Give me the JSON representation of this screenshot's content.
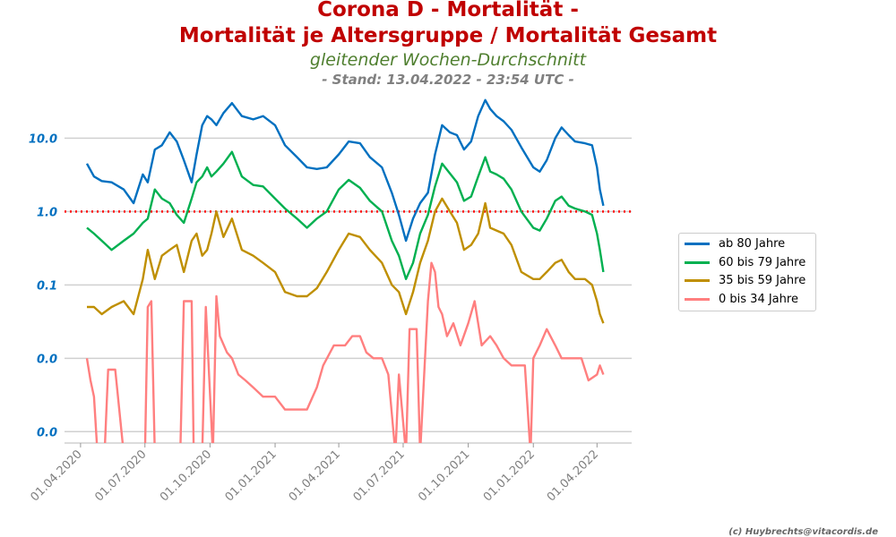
{
  "chart_data": {
    "type": "line",
    "title_line1": "Corona D - Mortalität -",
    "title_line2": "Mortalität je Altersgruppe / Mortalität Gesamt",
    "subtitle": "gleitender Wochen-Durchschnitt",
    "stand": "- Stand: 13.04.2022 - 23:54 UTC -",
    "credit": "(c) Huybrechts@vitacordis.de",
    "y_scale": "log",
    "y_tick_labels": [
      "10.0",
      "1.0",
      "0.1",
      "0.0",
      "0.0"
    ],
    "y_tick_values": [
      10,
      1,
      0.1,
      0.01,
      0.001
    ],
    "ylim": [
      0.0007,
      40
    ],
    "x_tick_labels": [
      "01.04.2020",
      "01.07.2020",
      "01.10.2020",
      "01.01.2021",
      "01.04.2021",
      "01.07.2021",
      "01.10.2021",
      "01.01.2022",
      "01.04.2022"
    ],
    "x_tick_values": [
      "2020-04-01",
      "2020-07-01",
      "2020-10-01",
      "2021-01-01",
      "2021-04-01",
      "2021-07-01",
      "2021-10-01",
      "2022-01-01",
      "2022-04-01"
    ],
    "xlim": [
      "2020-03-22",
      "2022-05-20"
    ],
    "reference_line": {
      "value": 1.0,
      "color": "#ff0000",
      "style": "dotted"
    },
    "grid": true,
    "legend_position": "right",
    "series": [
      {
        "name": "ab 80 Jahre",
        "color": "#0070c0",
        "x": [
          "2020-04-10",
          "2020-04-20",
          "2020-05-01",
          "2020-05-15",
          "2020-06-01",
          "2020-06-15",
          "2020-06-28",
          "2020-07-05",
          "2020-07-15",
          "2020-07-25",
          "2020-08-05",
          "2020-08-15",
          "2020-08-25",
          "2020-09-05",
          "2020-09-12",
          "2020-09-20",
          "2020-09-27",
          "2020-10-03",
          "2020-10-10",
          "2020-10-20",
          "2020-11-01",
          "2020-11-15",
          "2020-12-01",
          "2020-12-15",
          "2021-01-01",
          "2021-01-15",
          "2021-02-01",
          "2021-02-15",
          "2021-03-01",
          "2021-03-15",
          "2021-04-01",
          "2021-04-15",
          "2021-05-01",
          "2021-05-15",
          "2021-06-01",
          "2021-06-15",
          "2021-06-25",
          "2021-07-05",
          "2021-07-15",
          "2021-07-25",
          "2021-08-05",
          "2021-08-15",
          "2021-08-25",
          "2021-09-05",
          "2021-09-15",
          "2021-09-25",
          "2021-10-05",
          "2021-10-15",
          "2021-10-25",
          "2021-11-01",
          "2021-11-10",
          "2021-11-20",
          "2021-12-01",
          "2021-12-15",
          "2022-01-01",
          "2022-01-10",
          "2022-01-20",
          "2022-02-01",
          "2022-02-10",
          "2022-02-20",
          "2022-03-01",
          "2022-03-15",
          "2022-03-25",
          "2022-04-01",
          "2022-04-05",
          "2022-04-10"
        ],
        "values": [
          4.5,
          3.0,
          2.6,
          2.5,
          2.0,
          1.3,
          3.2,
          2.5,
          7.0,
          8.0,
          12.0,
          9.0,
          5.0,
          2.5,
          6.0,
          15.0,
          20.0,
          18.0,
          15.0,
          22.0,
          30.0,
          20.0,
          18.0,
          20.0,
          15.0,
          8.0,
          5.5,
          4.0,
          3.8,
          4.0,
          6.0,
          9.0,
          8.5,
          5.5,
          4.0,
          1.8,
          0.9,
          0.4,
          0.8,
          1.3,
          1.8,
          6.0,
          15.0,
          12.0,
          11.0,
          7.0,
          9.0,
          20.0,
          33.0,
          25.0,
          20.0,
          17.0,
          13.0,
          7.5,
          4.0,
          3.5,
          5.0,
          10.0,
          14.0,
          11.0,
          9.0,
          8.5,
          8.0,
          4.0,
          2.0,
          1.2
        ]
      },
      {
        "name": "60 bis 79 Jahre",
        "color": "#00b050",
        "x": [
          "2020-04-10",
          "2020-04-20",
          "2020-05-01",
          "2020-05-15",
          "2020-06-01",
          "2020-06-15",
          "2020-06-28",
          "2020-07-05",
          "2020-07-15",
          "2020-07-25",
          "2020-08-05",
          "2020-08-15",
          "2020-08-25",
          "2020-09-05",
          "2020-09-12",
          "2020-09-20",
          "2020-09-27",
          "2020-10-03",
          "2020-10-10",
          "2020-10-20",
          "2020-11-01",
          "2020-11-15",
          "2020-12-01",
          "2020-12-15",
          "2021-01-01",
          "2021-01-15",
          "2021-02-01",
          "2021-02-15",
          "2021-03-01",
          "2021-03-15",
          "2021-04-01",
          "2021-04-15",
          "2021-05-01",
          "2021-05-15",
          "2021-06-01",
          "2021-06-15",
          "2021-06-25",
          "2021-07-05",
          "2021-07-15",
          "2021-07-25",
          "2021-08-05",
          "2021-08-15",
          "2021-08-25",
          "2021-09-05",
          "2021-09-15",
          "2021-09-25",
          "2021-10-05",
          "2021-10-15",
          "2021-10-25",
          "2021-11-01",
          "2021-11-10",
          "2021-11-20",
          "2021-12-01",
          "2021-12-15",
          "2022-01-01",
          "2022-01-10",
          "2022-01-20",
          "2022-02-01",
          "2022-02-10",
          "2022-02-20",
          "2022-03-01",
          "2022-03-15",
          "2022-03-25",
          "2022-04-01",
          "2022-04-05",
          "2022-04-10"
        ],
        "values": [
          0.6,
          0.5,
          0.4,
          0.3,
          0.4,
          0.5,
          0.7,
          0.8,
          2.0,
          1.5,
          1.3,
          0.9,
          0.7,
          1.5,
          2.5,
          3.0,
          4.0,
          3.0,
          3.5,
          4.5,
          6.5,
          3.0,
          2.3,
          2.2,
          1.5,
          1.1,
          0.8,
          0.6,
          0.8,
          1.0,
          2.0,
          2.7,
          2.1,
          1.4,
          1.0,
          0.4,
          0.25,
          0.12,
          0.2,
          0.5,
          0.9,
          2.2,
          4.5,
          3.3,
          2.5,
          1.4,
          1.6,
          3.0,
          5.5,
          3.5,
          3.2,
          2.8,
          2.0,
          1.0,
          0.6,
          0.55,
          0.8,
          1.4,
          1.6,
          1.2,
          1.1,
          1.0,
          0.9,
          0.5,
          0.3,
          0.15
        ]
      },
      {
        "name": "35 bis 59 Jahre",
        "color": "#bf8f00",
        "x": [
          "2020-04-10",
          "2020-04-20",
          "2020-05-01",
          "2020-05-15",
          "2020-06-01",
          "2020-06-15",
          "2020-06-28",
          "2020-07-05",
          "2020-07-15",
          "2020-07-25",
          "2020-08-05",
          "2020-08-15",
          "2020-08-25",
          "2020-09-05",
          "2020-09-12",
          "2020-09-20",
          "2020-09-27",
          "2020-10-03",
          "2020-10-10",
          "2020-10-20",
          "2020-11-01",
          "2020-11-15",
          "2020-12-01",
          "2020-12-15",
          "2021-01-01",
          "2021-01-15",
          "2021-02-01",
          "2021-02-15",
          "2021-03-01",
          "2021-03-15",
          "2021-04-01",
          "2021-04-15",
          "2021-05-01",
          "2021-05-15",
          "2021-06-01",
          "2021-06-15",
          "2021-06-25",
          "2021-07-05",
          "2021-07-15",
          "2021-07-25",
          "2021-08-05",
          "2021-08-15",
          "2021-08-25",
          "2021-09-05",
          "2021-09-15",
          "2021-09-25",
          "2021-10-05",
          "2021-10-15",
          "2021-10-25",
          "2021-11-01",
          "2021-11-10",
          "2021-11-20",
          "2021-12-01",
          "2021-12-15",
          "2022-01-01",
          "2022-01-10",
          "2022-01-20",
          "2022-02-01",
          "2022-02-10",
          "2022-02-20",
          "2022-03-01",
          "2022-03-15",
          "2022-03-25",
          "2022-04-01",
          "2022-04-05",
          "2022-04-10"
        ],
        "values": [
          0.05,
          0.05,
          0.04,
          0.05,
          0.06,
          0.04,
          0.12,
          0.3,
          0.12,
          0.25,
          0.3,
          0.35,
          0.15,
          0.4,
          0.5,
          0.25,
          0.3,
          0.5,
          1.0,
          0.45,
          0.8,
          0.3,
          0.25,
          0.2,
          0.15,
          0.08,
          0.07,
          0.07,
          0.09,
          0.15,
          0.3,
          0.5,
          0.45,
          0.3,
          0.2,
          0.1,
          0.08,
          0.04,
          0.08,
          0.2,
          0.4,
          1.0,
          1.5,
          1.0,
          0.7,
          0.3,
          0.35,
          0.5,
          1.3,
          0.6,
          0.55,
          0.5,
          0.35,
          0.15,
          0.12,
          0.12,
          0.15,
          0.2,
          0.22,
          0.15,
          0.12,
          0.12,
          0.1,
          0.06,
          0.04,
          0.03
        ]
      },
      {
        "name": "0 bis 34 Jahre",
        "color": "#ff7f7f",
        "x": [
          "2020-04-10",
          "2020-04-15",
          "2020-04-20",
          "2020-04-25",
          "2020-05-05",
          "2020-05-10",
          "2020-05-20",
          "2020-06-01",
          "2020-07-01",
          "2020-07-05",
          "2020-07-10",
          "2020-07-15",
          "2020-08-20",
          "2020-08-25",
          "2020-09-05",
          "2020-09-08",
          "2020-09-20",
          "2020-09-25",
          "2020-10-05",
          "2020-10-10",
          "2020-10-15",
          "2020-10-25",
          "2020-11-01",
          "2020-11-10",
          "2020-11-20",
          "2020-12-01",
          "2020-12-15",
          "2021-01-01",
          "2021-01-15",
          "2021-02-01",
          "2021-02-15",
          "2021-03-01",
          "2021-03-10",
          "2021-03-25",
          "2021-04-10",
          "2021-04-20",
          "2021-05-01",
          "2021-05-10",
          "2021-05-20",
          "2021-06-01",
          "2021-06-10",
          "2021-06-20",
          "2021-06-25",
          "2021-07-05",
          "2021-07-10",
          "2021-07-20",
          "2021-07-25",
          "2021-08-05",
          "2021-08-10",
          "2021-08-15",
          "2021-08-20",
          "2021-08-25",
          "2021-09-01",
          "2021-09-10",
          "2021-09-20",
          "2021-10-01",
          "2021-10-10",
          "2021-10-20",
          "2021-11-01",
          "2021-11-10",
          "2021-11-20",
          "2021-12-01",
          "2021-12-10",
          "2021-12-20",
          "2021-12-28",
          "2022-01-01",
          "2022-01-10",
          "2022-01-20",
          "2022-02-01",
          "2022-02-10",
          "2022-02-20",
          "2022-03-01",
          "2022-03-10",
          "2022-03-20",
          "2022-04-01",
          "2022-04-05",
          "2022-04-10"
        ],
        "values": [
          0.01,
          0.005,
          0.003,
          0.0005,
          0.0005,
          0.007,
          0.007,
          0.0005,
          0.0005,
          0.05,
          0.06,
          0.0005,
          0.0005,
          0.06,
          0.06,
          0.0005,
          0.0005,
          0.05,
          0.0005,
          0.07,
          0.02,
          0.012,
          0.01,
          0.006,
          0.005,
          0.004,
          0.003,
          0.003,
          0.002,
          0.002,
          0.002,
          0.004,
          0.008,
          0.015,
          0.015,
          0.02,
          0.02,
          0.012,
          0.01,
          0.01,
          0.006,
          0.0005,
          0.006,
          0.0005,
          0.025,
          0.025,
          0.0005,
          0.06,
          0.2,
          0.15,
          0.05,
          0.04,
          0.02,
          0.03,
          0.015,
          0.03,
          0.06,
          0.015,
          0.02,
          0.015,
          0.01,
          0.008,
          0.008,
          0.008,
          0.0005,
          0.01,
          0.015,
          0.025,
          0.015,
          0.01,
          0.01,
          0.01,
          0.01,
          0.005,
          0.006,
          0.008,
          0.006
        ]
      }
    ]
  }
}
